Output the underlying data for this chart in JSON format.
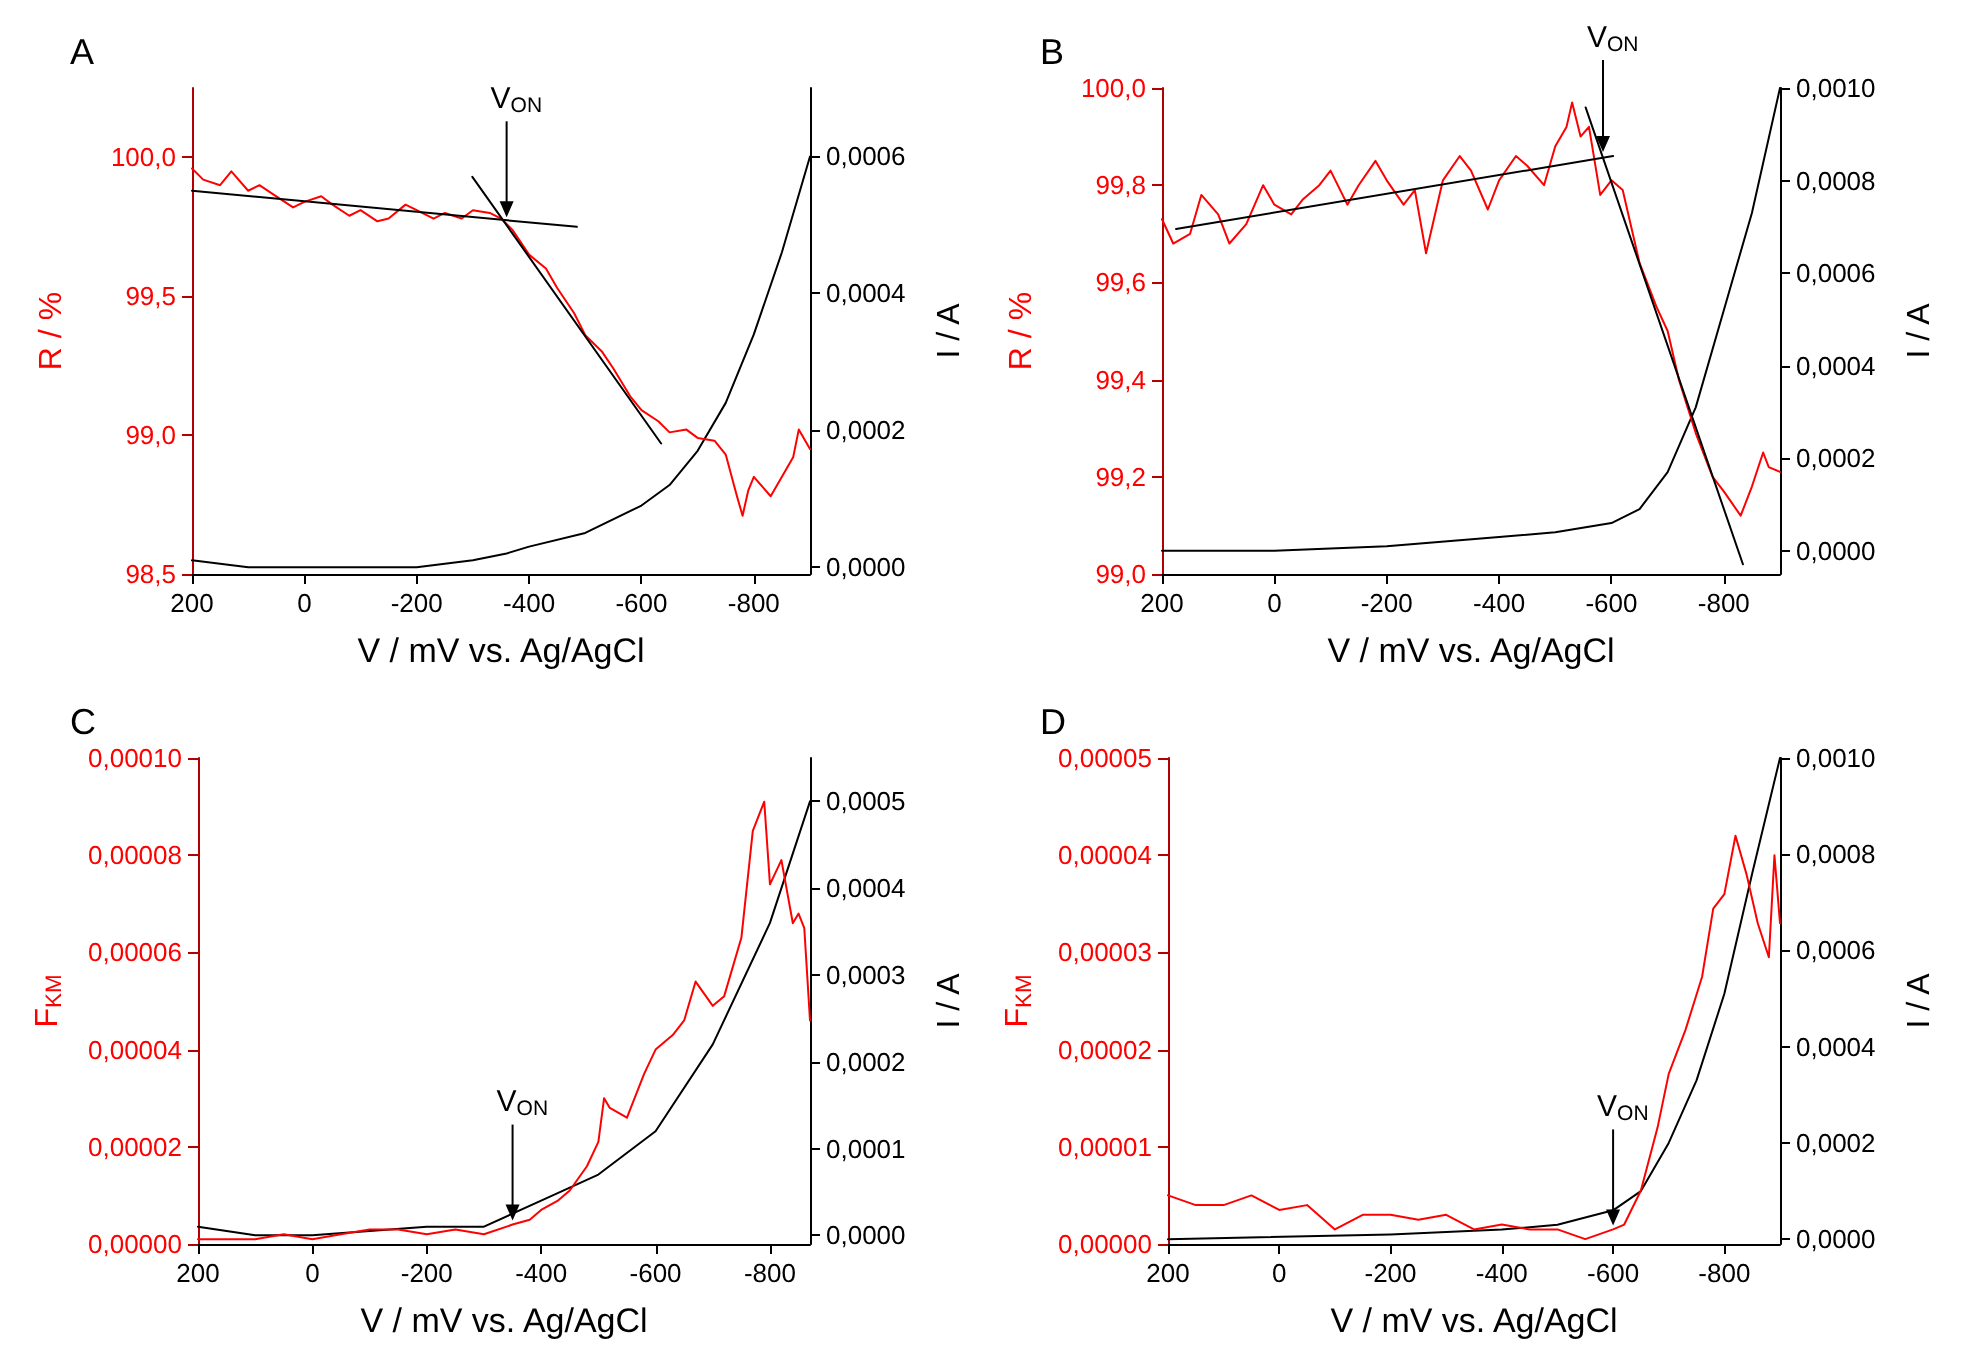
{
  "chart_data": [
    {
      "type": "line",
      "title": "A",
      "xlabel": "V / mV vs. Ag/AgCl",
      "ylabel": "R / %",
      "y2label": "I / A",
      "grid": false,
      "marker": "none",
      "line_style": "solid",
      "xlim": [
        200,
        -900
      ],
      "xticks": [
        200,
        0,
        -200,
        -400,
        -600,
        -800
      ],
      "ylim": [
        98.5,
        100.25
      ],
      "yticks": [
        {
          "value": 98.5,
          "label": "98,5"
        },
        {
          "value": 99,
          "label": "99,0"
        },
        {
          "value": 99.5,
          "label": "99,5"
        },
        {
          "value": 100,
          "label": "100,0"
        }
      ],
      "y2lim": [
        -1e-05,
        0.0007
      ],
      "y2ticks": [
        {
          "value": 0,
          "label": "0,0000"
        },
        {
          "value": 0.0002,
          "label": "0,0002"
        },
        {
          "value": 0.0004,
          "label": "0,0004"
        },
        {
          "value": 0.0006,
          "label": "0,0006"
        }
      ],
      "annotations": [
        {
          "text": "V$_{ON}$",
          "x": -360,
          "y": 99.77
        }
      ],
      "series": [
        {
          "color": "#ff0000",
          "x": [
            200,
            180,
            150,
            130,
            100,
            80,
            50,
            20,
            0,
            -30,
            -50,
            -80,
            -100,
            -130,
            -150,
            -180,
            -200,
            -230,
            -250,
            -280,
            -300,
            -330,
            -350,
            -370,
            -400,
            -430,
            -450,
            -480,
            -500,
            -530,
            -550,
            -580,
            -600,
            -630,
            -650,
            -680,
            -700,
            -730,
            -750,
            -770,
            -780,
            -790,
            -800,
            -830,
            -850,
            -870,
            -880,
            -900
          ],
          "values": [
            99.96,
            99.92,
            99.9,
            99.95,
            99.88,
            99.9,
            99.86,
            99.82,
            99.84,
            99.86,
            99.83,
            99.79,
            99.81,
            99.77,
            99.78,
            99.83,
            99.81,
            99.78,
            99.8,
            99.78,
            99.81,
            99.8,
            99.78,
            99.74,
            99.65,
            99.6,
            99.53,
            99.44,
            99.36,
            99.3,
            99.24,
            99.14,
            99.09,
            99.05,
            99.01,
            99.02,
            98.99,
            98.98,
            98.93,
            98.78,
            98.71,
            98.8,
            98.85,
            98.78,
            98.85,
            98.92,
            99.02,
            98.95
          ]
        },
        {
          "color": "#000000",
          "axis": "y2",
          "x": [
            200,
            100,
            0,
            -200,
            -300,
            -360,
            -400,
            -500,
            -600,
            -650,
            -700,
            -750,
            -800,
            -850,
            -900
          ],
          "values": [
            1e-05,
            0,
            0,
            0,
            1e-05,
            2e-05,
            3e-05,
            5e-05,
            9e-05,
            0.00012,
            0.00017,
            0.00024,
            0.00034,
            0.00046,
            0.0006
          ]
        },
        {
          "color": "#000000",
          "x": [
            200,
            -485
          ],
          "values": [
            99.88,
            99.75
          ]
        },
        {
          "color": "#000000",
          "x": [
            -299,
            -635
          ],
          "values": [
            99.93,
            98.97
          ]
        }
      ]
    },
    {
      "type": "line",
      "title": "B",
      "xlabel": "V / mV vs. Ag/AgCl",
      "ylabel": "R / %",
      "y2label": "I / A",
      "grid": false,
      "marker": "none",
      "line_style": "solid",
      "xlim": [
        200,
        -900
      ],
      "xticks": [
        200,
        0,
        -200,
        -400,
        -600,
        -800
      ],
      "ylim": [
        99,
        100
      ],
      "yticks": [
        {
          "value": 99,
          "label": "99,0"
        },
        {
          "value": 99.2,
          "label": "99,2"
        },
        {
          "value": 99.4,
          "label": "99,4"
        },
        {
          "value": 99.6,
          "label": "99,6"
        },
        {
          "value": 99.8,
          "label": "99,8"
        },
        {
          "value": 100,
          "label": "100,0"
        }
      ],
      "y2lim": [
        -5e-05,
        0.001
      ],
      "y2ticks": [
        {
          "value": 0,
          "label": "0,0000"
        },
        {
          "value": 0.0002,
          "label": "0,0002"
        },
        {
          "value": 0.0004,
          "label": "0,0004"
        },
        {
          "value": 0.0006,
          "label": "0,0006"
        },
        {
          "value": 0.0008,
          "label": "0,0008"
        },
        {
          "value": 0.001,
          "label": "0,0010"
        }
      ],
      "annotations": [
        {
          "text": "V$_{ON}$",
          "x": -585,
          "y": 99.86
        }
      ],
      "series": [
        {
          "color": "#ff0000",
          "x": [
            200,
            180,
            150,
            130,
            100,
            80,
            50,
            20,
            0,
            -30,
            -50,
            -80,
            -100,
            -130,
            -150,
            -180,
            -200,
            -230,
            -250,
            -270,
            -300,
            -330,
            -350,
            -380,
            -400,
            -430,
            -450,
            -480,
            -500,
            -520,
            -530,
            -545,
            -560,
            -580,
            -600,
            -620,
            -650,
            -680,
            -700,
            -720,
            -750,
            -780,
            -800,
            -830,
            -850,
            -870,
            -880,
            -900
          ],
          "values": [
            99.73,
            99.68,
            99.7,
            99.78,
            99.74,
            99.68,
            99.72,
            99.8,
            99.76,
            99.74,
            99.77,
            99.8,
            99.83,
            99.76,
            99.8,
            99.85,
            99.81,
            99.76,
            99.79,
            99.66,
            99.81,
            99.86,
            99.83,
            99.75,
            99.81,
            99.86,
            99.84,
            99.8,
            99.88,
            99.92,
            99.97,
            99.9,
            99.92,
            99.78,
            99.81,
            99.79,
            99.64,
            99.55,
            99.5,
            99.4,
            99.29,
            99.2,
            99.17,
            99.12,
            99.18,
            99.25,
            99.22,
            99.21
          ]
        },
        {
          "color": "#000000",
          "axis": "y2",
          "x": [
            200,
            0,
            -200,
            -400,
            -500,
            -600,
            -650,
            -700,
            -750,
            -800,
            -850,
            -900
          ],
          "values": [
            0,
            0,
            1e-05,
            3e-05,
            4e-05,
            6e-05,
            9e-05,
            0.00017,
            0.00031,
            0.00052,
            0.00073,
            0.001
          ]
        },
        {
          "color": "#000000",
          "x": [
            175,
            -603
          ],
          "values": [
            99.71,
            99.86
          ]
        },
        {
          "color": "#000000",
          "x": [
            -554,
            -834
          ],
          "values": [
            99.96,
            99.02
          ]
        }
      ]
    },
    {
      "type": "line",
      "title": "C",
      "xlabel": "V / mV vs. Ag/AgCl",
      "ylabel": "F$_{KM}$",
      "y2label": "I / A",
      "grid": false,
      "marker": "none",
      "line_style": "solid",
      "xlim": [
        200,
        -870
      ],
      "xticks": [
        200,
        0,
        -200,
        -400,
        -600,
        -800
      ],
      "ylim": [
        0,
        0.0001
      ],
      "yticks": [
        {
          "value": 0,
          "label": "0,00000"
        },
        {
          "value": 2e-05,
          "label": "0,00002"
        },
        {
          "value": 4e-05,
          "label": "0,00004"
        },
        {
          "value": 6e-05,
          "label": "0,00006"
        },
        {
          "value": 8e-05,
          "label": "0,00008"
        },
        {
          "value": 0.0001,
          "label": "0,00010"
        }
      ],
      "y2lim": [
        -1e-05,
        0.00055
      ],
      "y2ticks": [
        {
          "value": 0,
          "label": "0,0000"
        },
        {
          "value": 0.0001,
          "label": "0,0001"
        },
        {
          "value": 0.0002,
          "label": "0,0002"
        },
        {
          "value": 0.0003,
          "label": "0,0003"
        },
        {
          "value": 0.0004,
          "label": "0,0004"
        },
        {
          "value": 0.0005,
          "label": "0,0005"
        }
      ],
      "annotations": [
        {
          "text": "V$_{ON}$",
          "x": -350,
          "y": 4e-06
        }
      ],
      "series": [
        {
          "color": "#ff0000",
          "x": [
            200,
            150,
            100,
            50,
            0,
            -50,
            -100,
            -150,
            -200,
            -250,
            -300,
            -350,
            -380,
            -400,
            -430,
            -450,
            -480,
            -500,
            -510,
            -520,
            -550,
            -580,
            -600,
            -630,
            -650,
            -670,
            -700,
            -720,
            -750,
            -770,
            -790,
            -800,
            -820,
            -840,
            -850,
            -860,
            -870
          ],
          "values": [
            1e-06,
            1e-06,
            1e-06,
            2e-06,
            1e-06,
            2e-06,
            3e-06,
            3e-06,
            2e-06,
            3e-06,
            2e-06,
            4e-06,
            5e-06,
            7e-06,
            9e-06,
            1.1e-05,
            1.6e-05,
            2.1e-05,
            3e-05,
            2.8e-05,
            2.6e-05,
            3.5e-05,
            4e-05,
            4.3e-05,
            4.6e-05,
            5.4e-05,
            4.9e-05,
            5.1e-05,
            6.3e-05,
            8.5e-05,
            9.1e-05,
            7.4e-05,
            7.9e-05,
            6.6e-05,
            6.8e-05,
            6.5e-05,
            4.6e-05
          ]
        },
        {
          "color": "#000000",
          "axis": "y2",
          "x": [
            200,
            100,
            0,
            -200,
            -300,
            -400,
            -500,
            -600,
            -700,
            -800,
            -870
          ],
          "values": [
            1e-05,
            0,
            0,
            1e-05,
            1e-05,
            4e-05,
            7e-05,
            0.00012,
            0.00022,
            0.00036,
            0.0005
          ]
        }
      ]
    },
    {
      "type": "line",
      "title": "D",
      "xlabel": "V / mV vs. Ag/AgCl",
      "ylabel": "F$_{KM}$",
      "y2label": "I / A",
      "grid": false,
      "marker": "none",
      "line_style": "solid",
      "xlim": [
        200,
        -900
      ],
      "xticks": [
        200,
        0,
        -200,
        -400,
        -600,
        -800
      ],
      "ylim": [
        0,
        5e-05
      ],
      "yticks": [
        {
          "value": 0,
          "label": "0,00000"
        },
        {
          "value": 1e-05,
          "label": "0,00001"
        },
        {
          "value": 2e-05,
          "label": "0,00002"
        },
        {
          "value": 3e-05,
          "label": "0,00003"
        },
        {
          "value": 4e-05,
          "label": "0,00004"
        },
        {
          "value": 5e-05,
          "label": "0,00005"
        }
      ],
      "y2lim": [
        -1e-05,
        0.001
      ],
      "y2ticks": [
        {
          "value": 0,
          "label": "0,0000"
        },
        {
          "value": 0.0002,
          "label": "0,0002"
        },
        {
          "value": 0.0004,
          "label": "0,0004"
        },
        {
          "value": 0.0006,
          "label": "0,0006"
        },
        {
          "value": 0.0008,
          "label": "0,0008"
        },
        {
          "value": 0.001,
          "label": "0,0010"
        }
      ],
      "annotations": [
        {
          "text": "V$_{ON}$",
          "x": -600,
          "y": 1.5e-06
        }
      ],
      "series": [
        {
          "color": "#ff0000",
          "x": [
            200,
            150,
            100,
            50,
            0,
            -50,
            -100,
            -150,
            -200,
            -250,
            -300,
            -350,
            -400,
            -450,
            -500,
            -550,
            -600,
            -620,
            -650,
            -680,
            -700,
            -730,
            -760,
            -780,
            -800,
            -820,
            -840,
            -860,
            -880,
            -890,
            -900
          ],
          "values": [
            5e-06,
            4e-06,
            4e-06,
            5e-06,
            3.5e-06,
            4e-06,
            1.5e-06,
            3e-06,
            3e-06,
            2.5e-06,
            3e-06,
            1.5e-06,
            2e-06,
            1.5e-06,
            1.5e-06,
            5e-07,
            1.5e-06,
            2e-06,
            5.5e-06,
            1.2e-05,
            1.75e-05,
            2.2e-05,
            2.75e-05,
            3.45e-05,
            3.6e-05,
            4.2e-05,
            3.8e-05,
            3.3e-05,
            2.95e-05,
            4e-05,
            3.3e-05
          ]
        },
        {
          "color": "#000000",
          "axis": "y2",
          "x": [
            200,
            -200,
            -400,
            -500,
            -600,
            -650,
            -700,
            -750,
            -800,
            -850,
            -900
          ],
          "values": [
            0,
            1e-05,
            2e-05,
            3e-05,
            6e-05,
            0.0001,
            0.0002,
            0.00033,
            0.00051,
            0.00076,
            0.001
          ]
        }
      ]
    }
  ]
}
